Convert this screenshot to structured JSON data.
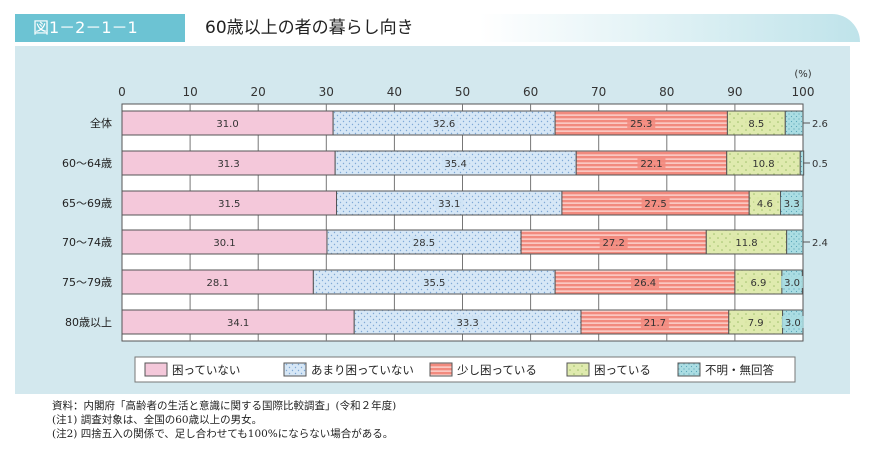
{
  "header": {
    "figure_number": "図1－2－1－1",
    "title": "60歳以上の者の暮らし向き"
  },
  "chart_data": {
    "type": "bar",
    "orientation": "horizontal",
    "stacked": true,
    "unit_label": "(%)",
    "xlim": [
      0,
      100
    ],
    "ticks": [
      "0",
      "10",
      "20",
      "30",
      "40",
      "50",
      "60",
      "70",
      "80",
      "90",
      "100"
    ],
    "categories": [
      "全体",
      "60～64歳",
      "65～69歳",
      "70～74歳",
      "75～79歳",
      "80歳以上"
    ],
    "series": [
      {
        "name": "困っていない",
        "values": [
          31.0,
          31.3,
          31.5,
          30.1,
          28.1,
          34.1
        ],
        "color": "#f4c8da"
      },
      {
        "name": "あまり困っていない",
        "values": [
          32.6,
          35.4,
          33.1,
          28.5,
          35.5,
          33.3
        ],
        "color": "#cfe3f5"
      },
      {
        "name": "少し困っている",
        "values": [
          25.3,
          22.1,
          27.5,
          27.2,
          26.4,
          21.7
        ],
        "color": "#f28a7e"
      },
      {
        "name": "困っている",
        "values": [
          8.5,
          10.8,
          4.6,
          11.8,
          6.9,
          7.9
        ],
        "color": "#dde9a9"
      },
      {
        "name": "不明・無回答",
        "values": [
          2.6,
          0.5,
          3.3,
          2.4,
          3.0,
          3.0
        ],
        "color": "#a9dde2"
      }
    ],
    "value_labels": [
      [
        "31.0",
        "32.6",
        "25.3",
        "8.5",
        "2.6"
      ],
      [
        "31.3",
        "35.4",
        "22.1",
        "10.8",
        "0.5"
      ],
      [
        "31.5",
        "33.1",
        "27.5",
        "4.6",
        "3.3"
      ],
      [
        "30.1",
        "28.5",
        "27.2",
        "11.8",
        "2.4"
      ],
      [
        "28.1",
        "35.5",
        "26.4",
        "6.9",
        "3.0"
      ],
      [
        "34.1",
        "33.3",
        "21.7",
        "7.9",
        "3.0"
      ]
    ],
    "outside_labels": [
      true,
      true,
      false,
      true,
      false,
      false
    ],
    "legend_position": "bottom",
    "grid": true
  },
  "notes": [
    "資料：内閣府「高齢者の生活と意識に関する国際比較調査」(令和２年度)",
    "(注1) 調査対象は、全国の60歳以上の男女。",
    "(注2) 四捨五入の関係で、足し合わせても100%にならない場合がある。"
  ]
}
